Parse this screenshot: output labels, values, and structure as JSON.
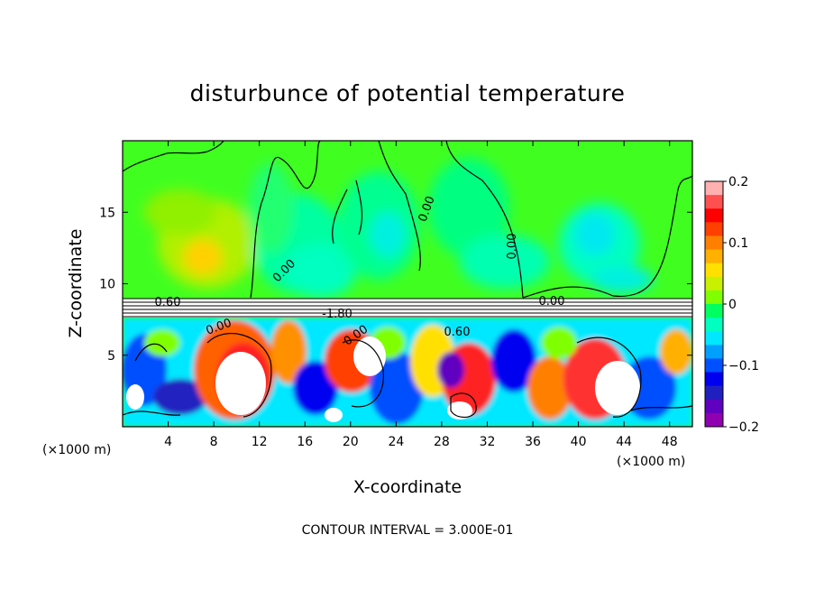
{
  "chart_data": {
    "type": "heatmap",
    "title": "disturbunce of potential temperature",
    "xlabel": "X-coordinate",
    "ylabel": "Z-coordinate",
    "x_unit": "(×1000 m)",
    "y_unit": "(×1000 m)",
    "xlim": [
      0,
      50
    ],
    "ylim": [
      0,
      20
    ],
    "xticks": [
      4,
      8,
      12,
      16,
      20,
      24,
      28,
      32,
      36,
      40,
      44,
      48
    ],
    "yticks": [
      5,
      10,
      15
    ],
    "footer": "CONTOUR INTERVAL = 3.000E-01",
    "colorbar": {
      "min": -0.2,
      "max": 0.2,
      "ticks": [
        0.2,
        0.1,
        0,
        -0.1,
        -0.2
      ],
      "tick_labels": [
        "0.2",
        "0.1",
        "0",
        "−0.1",
        "−0.2"
      ],
      "colors": [
        "#ffb0b0",
        "#ff5050",
        "#ff0000",
        "#ff4000",
        "#ff8000",
        "#ffb000",
        "#ffe000",
        "#c8f000",
        "#80ff00",
        "#00ff60",
        "#00ffc0",
        "#00e8ff",
        "#00a0ff",
        "#0050ff",
        "#0000f0",
        "#2020c0",
        "#6000c0",
        "#9000b0"
      ]
    },
    "contour_labels": [
      "0.60",
      "0.00",
      "0.00",
      "0.00",
      "-1.80",
      "0.00",
      "0.00",
      "0.60",
      "0.00"
    ],
    "stable_layer_z": [
      7.7,
      8.9
    ]
  }
}
